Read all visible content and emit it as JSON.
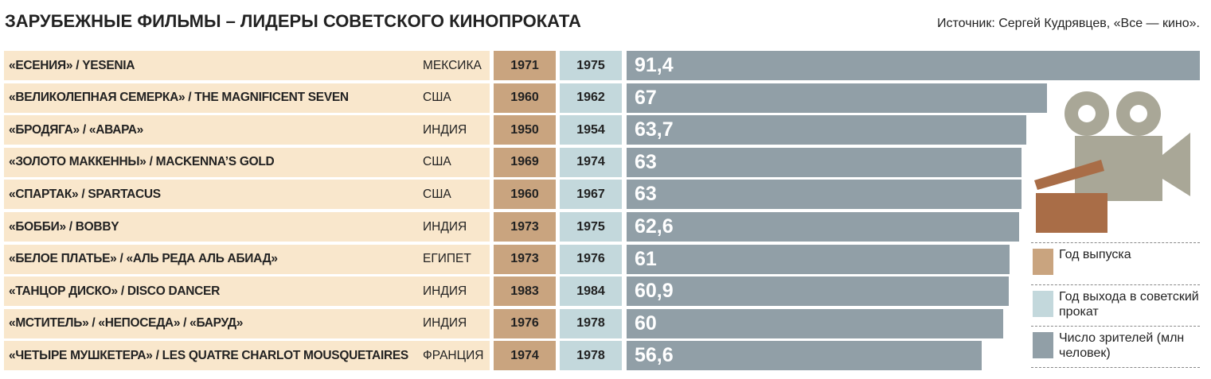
{
  "chart_data": {
    "type": "bar",
    "orientation": "horizontal",
    "title": "ЗАРУБЕЖНЫЕ ФИЛЬМЫ – ЛИДЕРЫ СОВЕТСКОГО КИНОПРОКАТА",
    "source": "Источник: Сергей Кудрявцев, «Все — кино».",
    "categories": [
      "«ЕСЕНИЯ» / YESENIA",
      "«ВЕЛИКОЛЕПНАЯ СЕМЕРКА» / THE MAGNIFICENT SEVEN",
      "«БРОДЯГА» / «АВАРА»",
      "«ЗОЛОТО МАККЕННЫ» / MACKENNA’S GOLD",
      "«СПАРТАК» / SPARTACUS",
      "«БОББИ» / BOBBY",
      "«БЕЛОЕ ПЛАТЬЕ» / «АЛЬ РЕДА АЛЬ АБИАД»",
      "«ТАНЦОР ДИСКО» / DISCO DANCER",
      "«МСТИТЕЛЬ» / «НЕПОСЕДА» / «БАРУД»",
      "«ЧЕТЫРЕ МУШКЕТЕРА» / LES QUATRE CHARLOT MOUSQUETAIRES"
    ],
    "countries": [
      "МЕКСИКА",
      "США",
      "ИНДИЯ",
      "США",
      "США",
      "ИНДИЯ",
      "ЕГИПЕТ",
      "ИНДИЯ",
      "ИНДИЯ",
      "ФРАНЦИЯ"
    ],
    "series": [
      {
        "name": "Год выпуска",
        "color": "#c9a47f",
        "values": [
          1971,
          1960,
          1950,
          1969,
          1960,
          1973,
          1973,
          1983,
          1976,
          1974
        ]
      },
      {
        "name": "Год выхода в советский прокат",
        "color": "#c3d8dc",
        "values": [
          1975,
          1962,
          1954,
          1974,
          1967,
          1975,
          1976,
          1984,
          1978,
          1978
        ]
      },
      {
        "name": "Число зрителей (млн человек)",
        "color": "#919fa7",
        "values": [
          91.4,
          67,
          63.7,
          63,
          63,
          62.6,
          61,
          60.9,
          60,
          56.6
        ],
        "value_labels": [
          "91,4",
          "67",
          "63,7",
          "63",
          "63",
          "62,6",
          "61",
          "60,9",
          "60",
          "56,6"
        ]
      }
    ]
  }
}
